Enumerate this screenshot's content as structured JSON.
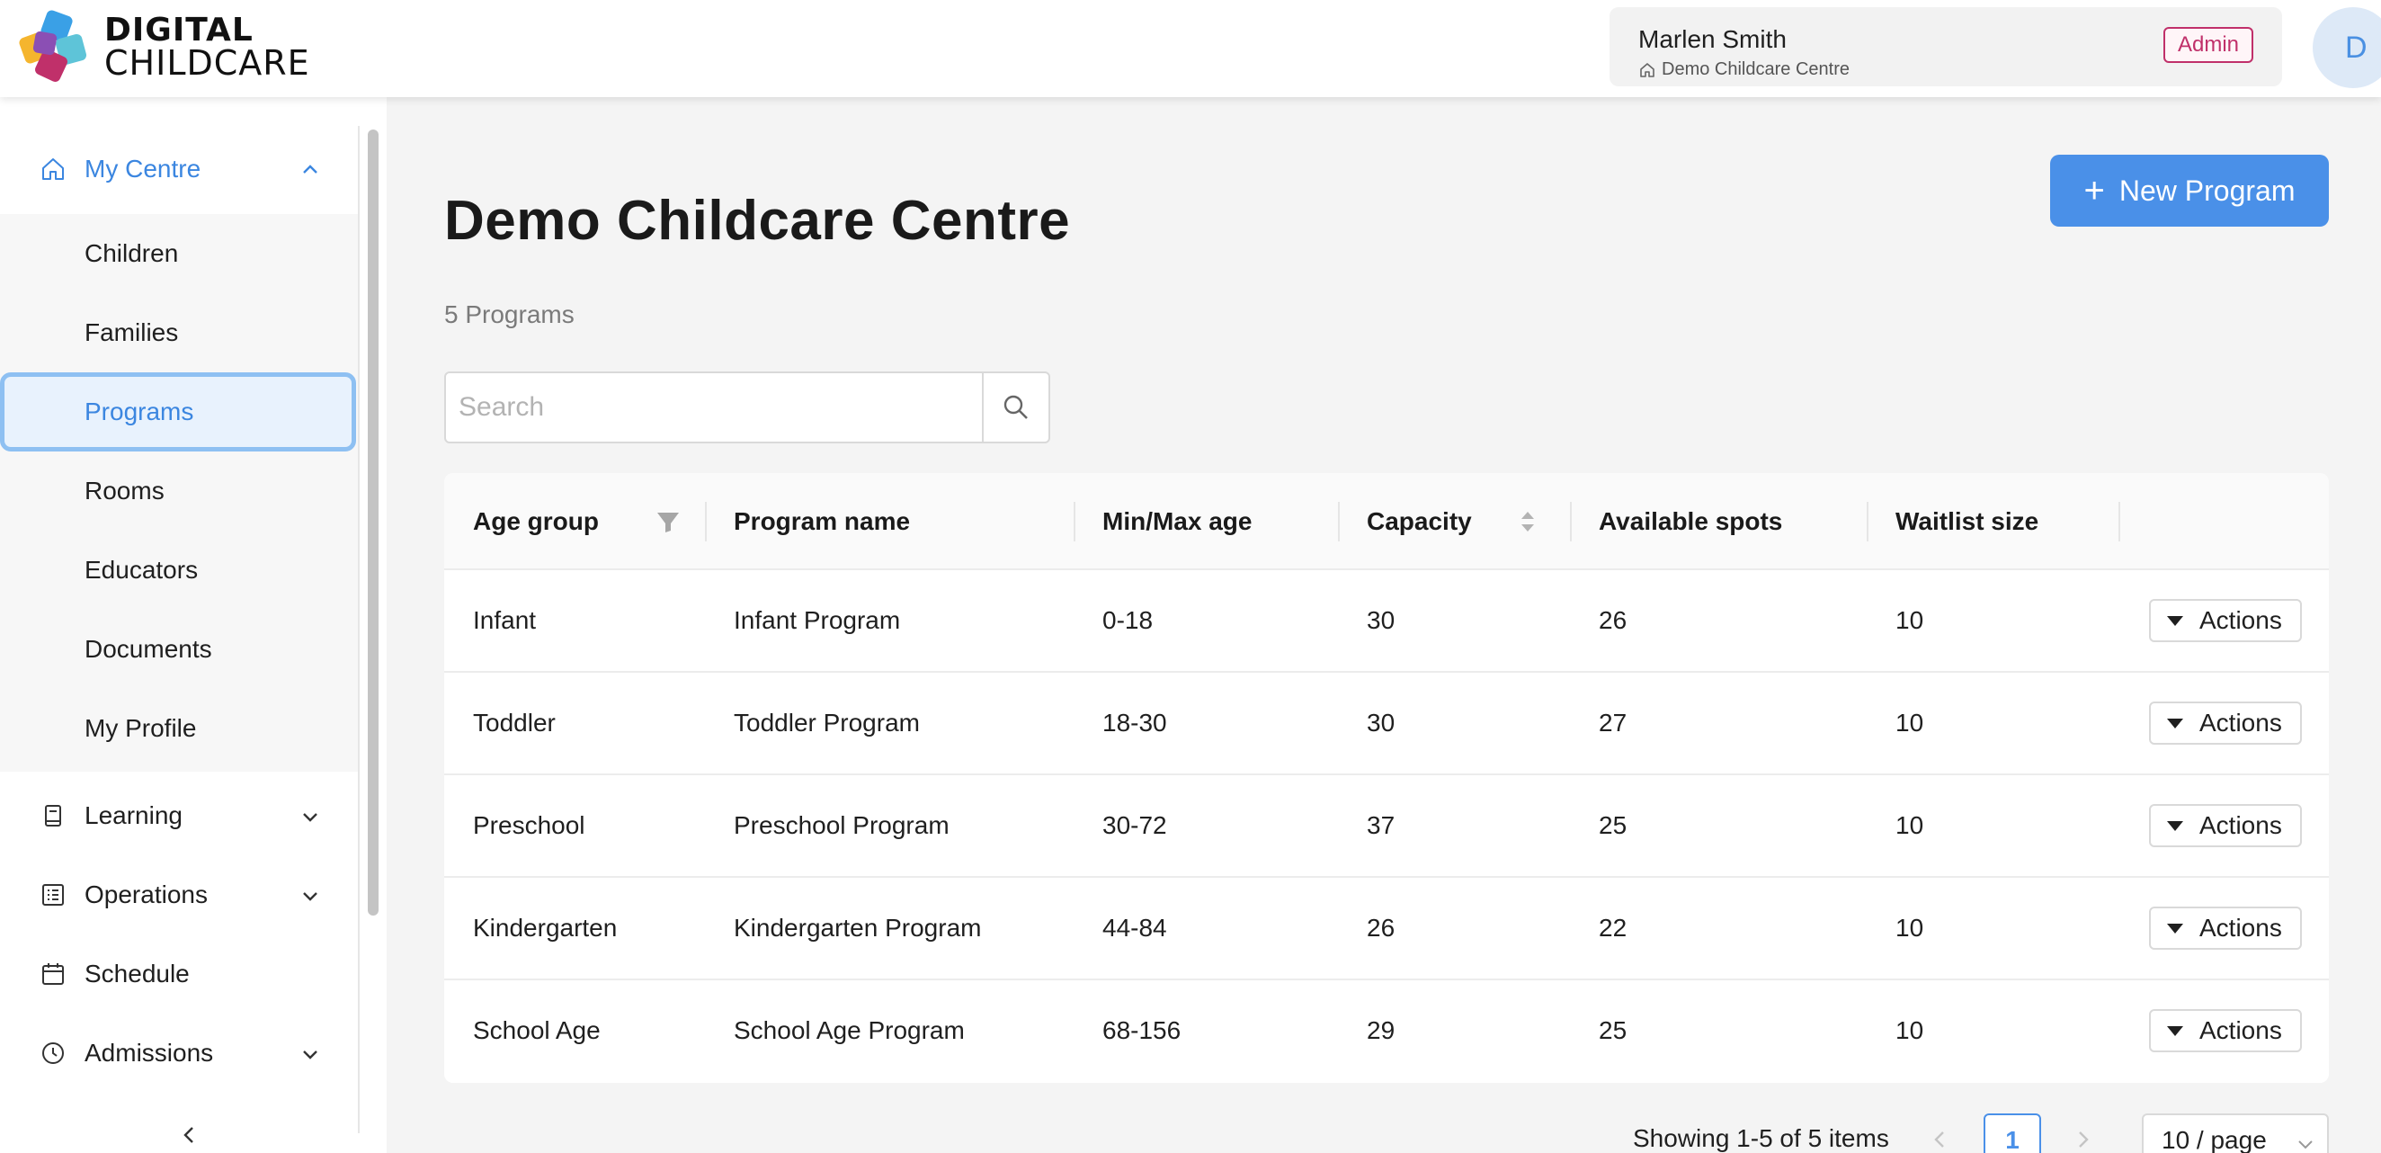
{
  "header": {
    "logo_line1": "DIGITAL",
    "logo_line2": "CHILDCARE",
    "user_name": "Marlen Smith",
    "user_centre": "Demo Childcare Centre",
    "role_badge": "Admin",
    "avatar_initial": "D"
  },
  "sidebar": {
    "my_centre": {
      "label": "My Centre",
      "icon": "home-icon"
    },
    "sub_items": [
      {
        "label": "Children"
      },
      {
        "label": "Families"
      },
      {
        "label": "Programs"
      },
      {
        "label": "Rooms"
      },
      {
        "label": "Educators"
      },
      {
        "label": "Documents"
      },
      {
        "label": "My Profile"
      }
    ],
    "selected_item": "Programs",
    "groups": [
      {
        "label": "Learning",
        "icon": "book-icon",
        "expandable": true
      },
      {
        "label": "Operations",
        "icon": "list-icon",
        "expandable": true
      },
      {
        "label": "Schedule",
        "icon": "calendar-icon",
        "expandable": false
      },
      {
        "label": "Admissions",
        "icon": "clock-icon",
        "expandable": true
      }
    ]
  },
  "main": {
    "title": "Demo Childcare Centre",
    "count_text": "5 Programs",
    "new_button_label": "New Program",
    "search_placeholder": "Search"
  },
  "table": {
    "columns": [
      "Age group",
      "Program name",
      "Min/Max age",
      "Capacity",
      "Available spots",
      "Waitlist size"
    ],
    "actions_label": "Actions",
    "rows": [
      {
        "age_group": "Infant",
        "program_name": "Infant Program",
        "min_max_age": "0-18",
        "capacity": "30",
        "available_spots": "26",
        "waitlist_size": "10"
      },
      {
        "age_group": "Toddler",
        "program_name": "Toddler Program",
        "min_max_age": "18-30",
        "capacity": "30",
        "available_spots": "27",
        "waitlist_size": "10"
      },
      {
        "age_group": "Preschool",
        "program_name": "Preschool Program",
        "min_max_age": "30-72",
        "capacity": "37",
        "available_spots": "25",
        "waitlist_size": "10"
      },
      {
        "age_group": "Kindergarten",
        "program_name": "Kindergarten Program",
        "min_max_age": "44-84",
        "capacity": "26",
        "available_spots": "22",
        "waitlist_size": "10"
      },
      {
        "age_group": "School Age",
        "program_name": "School Age Program",
        "min_max_age": "68-156",
        "capacity": "29",
        "available_spots": "25",
        "waitlist_size": "10"
      }
    ]
  },
  "pagination": {
    "showing_text": "Showing 1-5 of 5 items",
    "current_page": "1",
    "page_size_label": "10 / page"
  },
  "colors": {
    "accent": "#4a90e8",
    "admin_badge": "#c0306a"
  }
}
